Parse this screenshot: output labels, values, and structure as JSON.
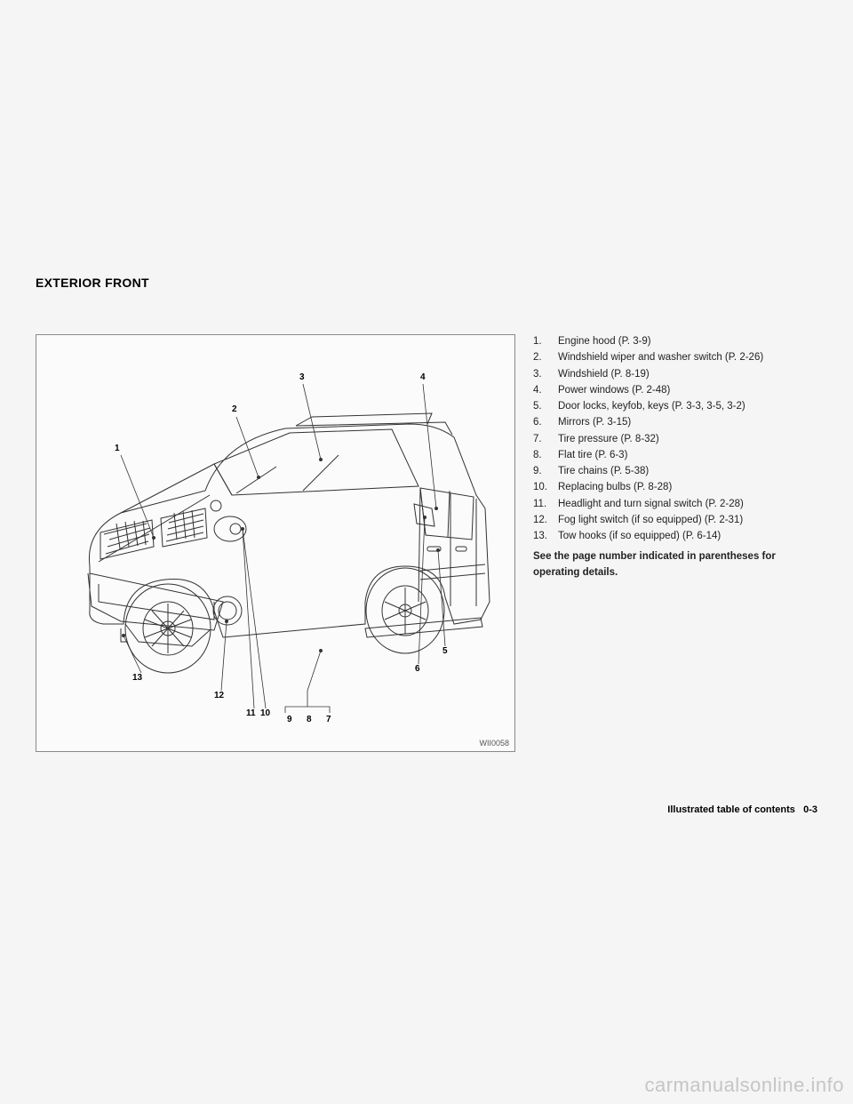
{
  "section_title": "EXTERIOR FRONT",
  "figure": {
    "code": "WII0058",
    "callouts": {
      "c1": "1",
      "c2": "2",
      "c3": "3",
      "c4": "4",
      "c5": "5",
      "c6": "6",
      "c7": "7",
      "c8": "8",
      "c9": "9",
      "c10": "10",
      "c11": "11",
      "c12": "12",
      "c13": "13"
    },
    "stroke_color": "#333333",
    "background": "#fbfbfb"
  },
  "items": [
    {
      "n": "1.",
      "t": "Engine hood (P. 3-9)"
    },
    {
      "n": "2.",
      "t": "Windshield wiper and washer switch (P. 2-26)"
    },
    {
      "n": "3.",
      "t": "Windshield (P. 8-19)"
    },
    {
      "n": "4.",
      "t": "Power windows (P. 2-48)"
    },
    {
      "n": "5.",
      "t": "Door locks, keyfob, keys (P. 3-3, 3-5, 3-2)"
    },
    {
      "n": "6.",
      "t": "Mirrors (P. 3-15)"
    },
    {
      "n": "7.",
      "t": "Tire pressure (P. 8-32)"
    },
    {
      "n": "8.",
      "t": "Flat tire (P. 6-3)"
    },
    {
      "n": "9.",
      "t": "Tire chains (P. 5-38)"
    },
    {
      "n": "10.",
      "t": "Replacing bulbs (P. 8-28)"
    },
    {
      "n": "11.",
      "t": "Headlight and turn signal switch (P. 2-28)"
    },
    {
      "n": "12.",
      "t": "Fog light switch (if so equipped) (P. 2-31)"
    },
    {
      "n": "13.",
      "t": "Tow hooks (if so equipped) (P. 6-14)"
    }
  ],
  "note": "See the page number indicated in parentheses for operating details.",
  "footer": {
    "label": "Illustrated table of contents",
    "page": "0-3"
  },
  "watermark": "carmanualsonline.info"
}
